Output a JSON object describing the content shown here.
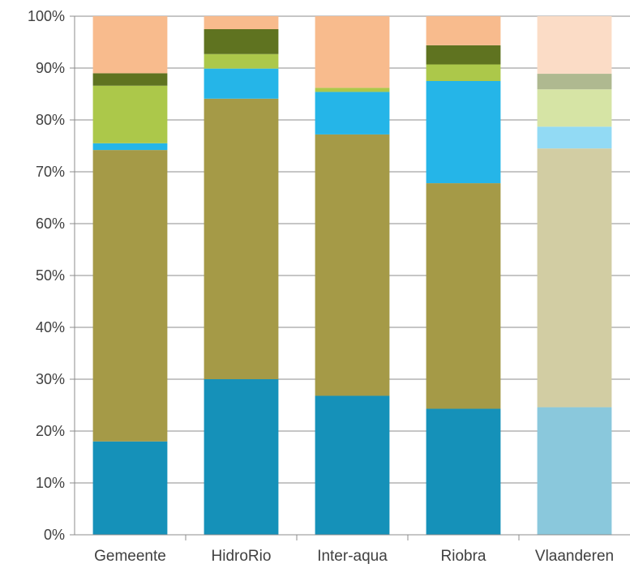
{
  "chart_data": {
    "type": "bar",
    "stacked": true,
    "normalized_percent": true,
    "title": "",
    "xlabel": "",
    "ylabel": "",
    "ylim": [
      0,
      100
    ],
    "y_tick_labels": [
      "0%",
      "10%",
      "20%",
      "30%",
      "40%",
      "50%",
      "60%",
      "70%",
      "80%",
      "90%",
      "100%"
    ],
    "grid": true,
    "legend": "none",
    "categories": [
      "Gemeente",
      "HidroRio",
      "Inter-aqua",
      "Riobra",
      "Vlaanderen"
    ],
    "series": [
      {
        "values": [
          18,
          30,
          26.8,
          24.3,
          24.6
        ],
        "colors": [
          "#1591b9",
          "#1591b9",
          "#1591b9",
          "#1591b9",
          "#8ac8dc"
        ]
      },
      {
        "values": [
          56.2,
          54.1,
          50.4,
          43.5,
          49.9
        ],
        "colors": [
          "#a59a47",
          "#a59a47",
          "#a59a47",
          "#a59a47",
          "#d2cda3"
        ]
      },
      {
        "values": [
          1.3,
          5.8,
          8.2,
          19.7,
          4.2
        ],
        "colors": [
          "#25b5e8",
          "#25b5e8",
          "#25b5e8",
          "#25b5e8",
          "#92daf4"
        ]
      },
      {
        "values": [
          11.1,
          2.8,
          0.8,
          3.2,
          7.2
        ],
        "colors": [
          "#acc84a",
          "#acc84a",
          "#acc84a",
          "#acc84a",
          "#d6e4a5"
        ]
      },
      {
        "values": [
          2.4,
          4.8,
          0,
          3.7,
          3
        ],
        "colors": [
          "#5f7320",
          "#5f7320",
          "#5f7320",
          "#5f7320",
          "#afb990"
        ]
      },
      {
        "values": [
          11,
          2.5,
          13.8,
          5.6,
          11.1
        ],
        "colors": [
          "#f8bb8d",
          "#f8bb8d",
          "#f8bb8d",
          "#f8bb8d",
          "#fbdcc6"
        ]
      }
    ]
  }
}
